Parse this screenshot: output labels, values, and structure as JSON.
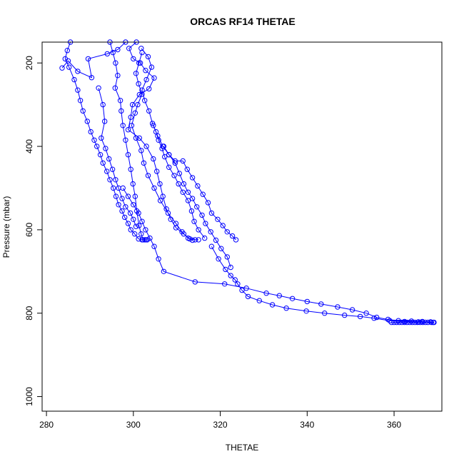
{
  "chart_data": {
    "type": "line",
    "title": "ORCAS RF14 THETAE",
    "xlabel": "THETAE",
    "ylabel": "Pressure (mbar)",
    "xlim": [
      279,
      371
    ],
    "ylim": [
      1035,
      150
    ],
    "y_reversed": true,
    "xticks": [
      280,
      300,
      320,
      340,
      360
    ],
    "yticks": [
      200,
      400,
      600,
      800,
      1000
    ],
    "grid": false,
    "legend": "none",
    "color": "#0000ff",
    "marker": "open-circle",
    "series": [
      {
        "points": [
          [
            285.5,
            150
          ],
          [
            284.8,
            170
          ],
          [
            284.3,
            190
          ],
          [
            285.2,
            210
          ],
          [
            286.4,
            240
          ],
          [
            287.2,
            265
          ],
          [
            287.8,
            290
          ],
          [
            288.4,
            315
          ],
          [
            289.4,
            340
          ],
          [
            290.2,
            365
          ],
          [
            291.0,
            385
          ],
          [
            291.6,
            400
          ],
          [
            292.4,
            420
          ],
          [
            293.0,
            440
          ],
          [
            293.9,
            460
          ],
          [
            294.6,
            480
          ],
          [
            295.4,
            500
          ],
          [
            296.0,
            520
          ],
          [
            296.6,
            540
          ],
          [
            297.4,
            555
          ],
          [
            298.0,
            570
          ],
          [
            298.8,
            585
          ],
          [
            299.4,
            600
          ],
          [
            300.3,
            610
          ],
          [
            301.2,
            622
          ],
          [
            302.0,
            624
          ],
          [
            302.6,
            624
          ],
          [
            303.2,
            624
          ]
        ]
      },
      {
        "points": [
          [
            283.6,
            212
          ],
          [
            285.0,
            195
          ],
          [
            287.2,
            220
          ],
          [
            290.4,
            235
          ],
          [
            289.6,
            190
          ],
          [
            294.0,
            178
          ],
          [
            296.4,
            168
          ],
          [
            298.2,
            150
          ]
        ]
      },
      {
        "points": [
          [
            294.6,
            150
          ],
          [
            295.3,
            175
          ],
          [
            295.9,
            200
          ],
          [
            296.4,
            230
          ],
          [
            295.8,
            260
          ],
          [
            297.0,
            290
          ],
          [
            297.2,
            315
          ],
          [
            297.6,
            350
          ],
          [
            298.2,
            385
          ],
          [
            298.8,
            420
          ],
          [
            299.4,
            455
          ],
          [
            299.9,
            490
          ],
          [
            300.4,
            520
          ],
          [
            300.8,
            555
          ],
          [
            301.3,
            590
          ],
          [
            301.8,
            610
          ],
          [
            302.2,
            624
          ],
          [
            302.9,
            624
          ]
        ]
      },
      {
        "points": [
          [
            292.0,
            260
          ],
          [
            293.0,
            300
          ],
          [
            293.4,
            340
          ],
          [
            292.6,
            380
          ],
          [
            293.6,
            405
          ],
          [
            294.4,
            430
          ],
          [
            295.2,
            455
          ],
          [
            295.9,
            480
          ],
          [
            296.6,
            500
          ],
          [
            297.4,
            525
          ],
          [
            298.2,
            545
          ],
          [
            299.3,
            560
          ],
          [
            300.0,
            575
          ],
          [
            300.6,
            592
          ]
        ]
      },
      {
        "points": [
          [
            300.7,
            150
          ],
          [
            299.0,
            165
          ],
          [
            300.0,
            190
          ],
          [
            301.6,
            200
          ],
          [
            302.8,
            218
          ],
          [
            304.8,
            236
          ],
          [
            303.6,
            262
          ],
          [
            301.4,
            276
          ],
          [
            299.8,
            300
          ],
          [
            299.4,
            330
          ],
          [
            298.8,
            360
          ],
          [
            301.4,
            380
          ],
          [
            303.0,
            400
          ],
          [
            304.6,
            430
          ],
          [
            305.4,
            460
          ],
          [
            306.1,
            490
          ],
          [
            306.8,
            520
          ],
          [
            307.6,
            550
          ],
          [
            308.6,
            575
          ],
          [
            309.8,
            595
          ],
          [
            311.6,
            610
          ],
          [
            313.0,
            622
          ],
          [
            314.2,
            624
          ],
          [
            315.0,
            624
          ]
        ]
      },
      {
        "points": [
          [
            302.0,
            175
          ],
          [
            301.3,
            200
          ],
          [
            300.6,
            225
          ],
          [
            301.2,
            250
          ],
          [
            302.0,
            275
          ],
          [
            301.0,
            300
          ],
          [
            300.4,
            320
          ],
          [
            299.6,
            350
          ],
          [
            300.6,
            380
          ],
          [
            301.8,
            410
          ],
          [
            302.4,
            440
          ],
          [
            303.4,
            470
          ],
          [
            304.8,
            500
          ],
          [
            306.2,
            530
          ],
          [
            308.0,
            560
          ],
          [
            309.8,
            585
          ],
          [
            311.2,
            605
          ],
          [
            312.6,
            620
          ],
          [
            313.6,
            625
          ]
        ]
      },
      {
        "points": [
          [
            301.8,
            165
          ],
          [
            303.4,
            185
          ],
          [
            304.2,
            210
          ],
          [
            303.0,
            240
          ],
          [
            302.0,
            265
          ],
          [
            302.6,
            290
          ],
          [
            303.6,
            315
          ],
          [
            304.4,
            345
          ],
          [
            305.2,
            365
          ],
          [
            305.8,
            385
          ],
          [
            306.6,
            405
          ],
          [
            307.2,
            425
          ],
          [
            308.2,
            450
          ],
          [
            309.4,
            470
          ],
          [
            310.4,
            490
          ],
          [
            311.4,
            510
          ],
          [
            312.6,
            530
          ],
          [
            313.4,
            555
          ],
          [
            314.0,
            580
          ],
          [
            315.0,
            600
          ],
          [
            316.4,
            620
          ]
        ]
      },
      {
        "points": [
          [
            304.6,
            350
          ],
          [
            305.6,
            375
          ],
          [
            306.8,
            400
          ],
          [
            308.2,
            420
          ],
          [
            309.6,
            440
          ],
          [
            310.6,
            465
          ],
          [
            311.6,
            490
          ],
          [
            312.6,
            510
          ],
          [
            313.6,
            525
          ],
          [
            314.6,
            545
          ],
          [
            315.8,
            565
          ],
          [
            316.6,
            585
          ],
          [
            317.8,
            605
          ],
          [
            319.0,
            625
          ],
          [
            320.2,
            645
          ],
          [
            321.6,
            665
          ],
          [
            322.4,
            690
          ]
        ]
      },
      {
        "points": [
          [
            307.0,
            400
          ],
          [
            308.2,
            420
          ],
          [
            309.6,
            435
          ],
          [
            311.4,
            435
          ],
          [
            312.4,
            455
          ],
          [
            313.6,
            475
          ],
          [
            314.8,
            495
          ],
          [
            316.0,
            515
          ],
          [
            317.2,
            535
          ],
          [
            318.0,
            560
          ],
          [
            319.4,
            575
          ],
          [
            320.6,
            590
          ],
          [
            321.6,
            605
          ],
          [
            322.8,
            615
          ],
          [
            323.6,
            624
          ]
        ]
      },
      {
        "points": [
          [
            297.6,
            500
          ],
          [
            298.8,
            520
          ],
          [
            300.0,
            540
          ],
          [
            301.2,
            560
          ],
          [
            302.0,
            580
          ],
          [
            302.8,
            600
          ],
          [
            303.8,
            620
          ],
          [
            304.8,
            640
          ],
          [
            305.8,
            670
          ],
          [
            307.0,
            700
          ],
          [
            314.2,
            725
          ],
          [
            321.0,
            730
          ],
          [
            326.0,
            740
          ],
          [
            330.6,
            752
          ],
          [
            333.6,
            758
          ],
          [
            336.6,
            765
          ],
          [
            340.0,
            772
          ],
          [
            343.2,
            778
          ],
          [
            347.0,
            785
          ],
          [
            350.4,
            792
          ],
          [
            353.6,
            800
          ],
          [
            356.0,
            810
          ],
          [
            358.6,
            815
          ],
          [
            361.0,
            818
          ],
          [
            364.0,
            819
          ],
          [
            366.5,
            820
          ],
          [
            368.4,
            821
          ]
        ]
      },
      {
        "points": [
          [
            318.0,
            640
          ],
          [
            319.6,
            670
          ],
          [
            321.2,
            695
          ],
          [
            322.4,
            710
          ],
          [
            323.4,
            720
          ],
          [
            324.0,
            730
          ],
          [
            325.0,
            745
          ],
          [
            326.4,
            760
          ],
          [
            329.0,
            770
          ],
          [
            332.0,
            780
          ],
          [
            335.2,
            788
          ],
          [
            339.8,
            795
          ],
          [
            344.0,
            800
          ],
          [
            348.6,
            805
          ],
          [
            352.2,
            808
          ],
          [
            355.4,
            812
          ],
          [
            359.0,
            818
          ],
          [
            362.4,
            820
          ],
          [
            365.6,
            821
          ],
          [
            369.0,
            822
          ]
        ]
      },
      {
        "points": [
          [
            359.4,
            822
          ],
          [
            360.0,
            822
          ],
          [
            360.6,
            822
          ],
          [
            361.2,
            822
          ],
          [
            361.8,
            822
          ],
          [
            362.4,
            822
          ],
          [
            363.0,
            822
          ],
          [
            363.6,
            822
          ],
          [
            364.2,
            822
          ],
          [
            364.8,
            822
          ],
          [
            365.4,
            822
          ],
          [
            366.0,
            822
          ],
          [
            366.6,
            822
          ],
          [
            367.2,
            822
          ],
          [
            367.8,
            822
          ],
          [
            368.6,
            822
          ],
          [
            369.2,
            822
          ]
        ]
      }
    ]
  }
}
